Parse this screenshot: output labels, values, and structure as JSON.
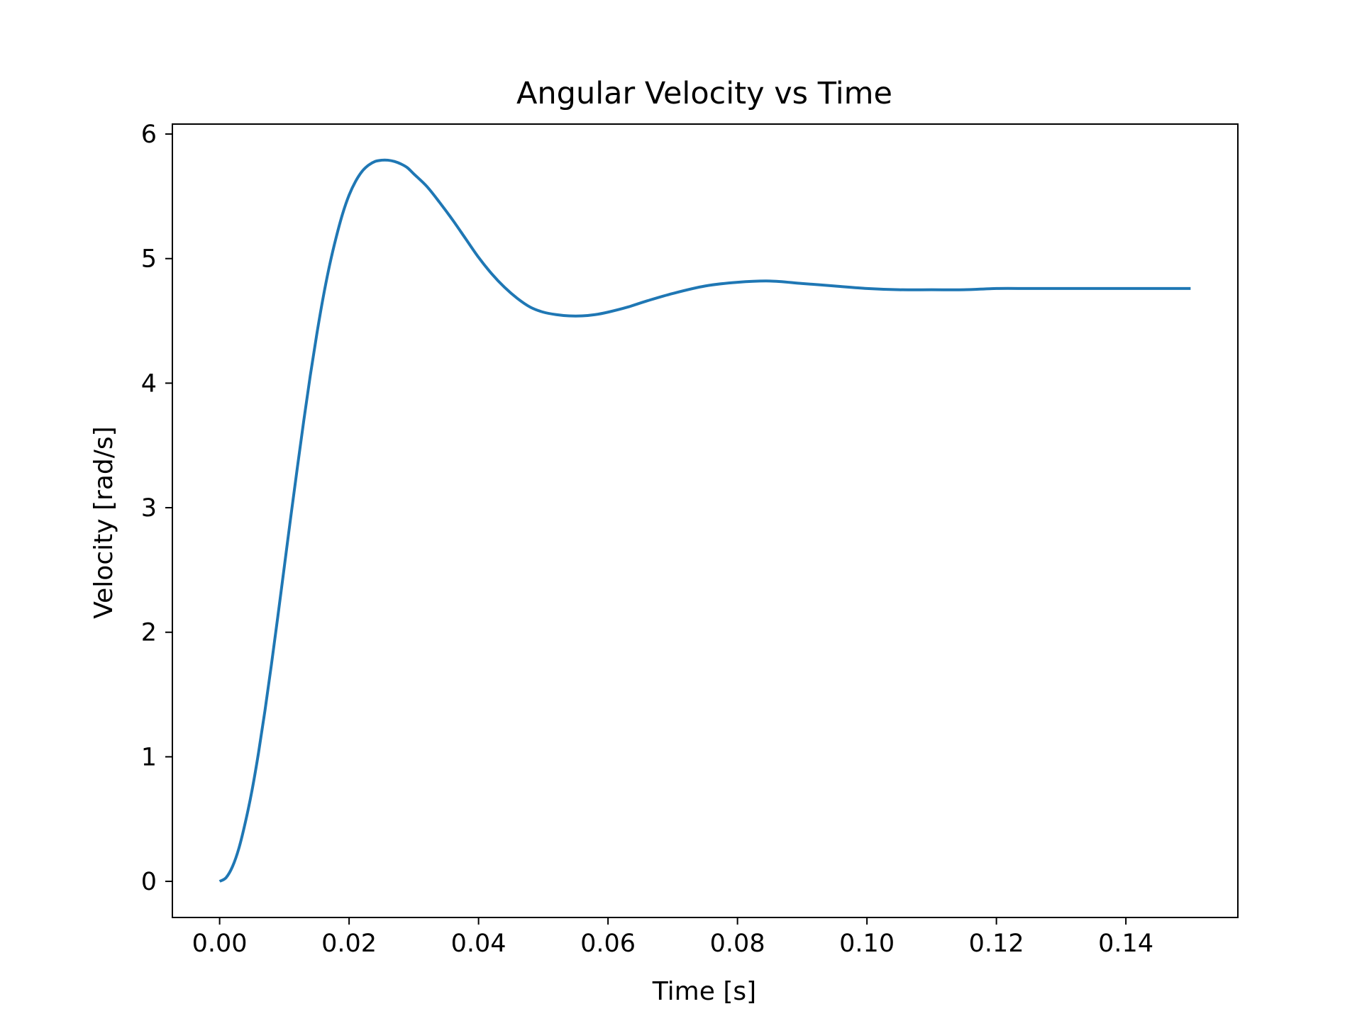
{
  "chart_data": {
    "type": "line",
    "title": "Angular Velocity vs Time",
    "xlabel": "Time [s]",
    "ylabel": "Velocity [rad/s]",
    "xlim": [
      -0.0073,
      0.1573
    ],
    "ylim": [
      -0.29,
      6.08
    ],
    "grid": false,
    "legend": "none",
    "x_ticks": [
      "0.00",
      "0.02",
      "0.04",
      "0.06",
      "0.08",
      "0.10",
      "0.12",
      "0.14"
    ],
    "x_tick_values": [
      0.0,
      0.02,
      0.04,
      0.06,
      0.08,
      0.1,
      0.12,
      0.14
    ],
    "y_ticks": [
      "0",
      "1",
      "2",
      "3",
      "4",
      "5",
      "6"
    ],
    "y_tick_values": [
      0,
      1,
      2,
      3,
      4,
      5,
      6
    ],
    "series": [
      {
        "color": "#1f77b4",
        "x": [
          0.0,
          0.001,
          0.002,
          0.003,
          0.004,
          0.005,
          0.006,
          0.007,
          0.008,
          0.009,
          0.01,
          0.011,
          0.012,
          0.013,
          0.014,
          0.015,
          0.016,
          0.017,
          0.018,
          0.019,
          0.02,
          0.021,
          0.022,
          0.023,
          0.024,
          0.025,
          0.026,
          0.027,
          0.028,
          0.029,
          0.03,
          0.032,
          0.034,
          0.036,
          0.038,
          0.04,
          0.042,
          0.044,
          0.046,
          0.048,
          0.05,
          0.052,
          0.054,
          0.056,
          0.058,
          0.06,
          0.063,
          0.066,
          0.07,
          0.075,
          0.08,
          0.085,
          0.09,
          0.095,
          0.1,
          0.105,
          0.11,
          0.115,
          0.12,
          0.125,
          0.13,
          0.135,
          0.14,
          0.145,
          0.15
        ],
        "y": [
          0.0,
          0.03,
          0.12,
          0.27,
          0.48,
          0.73,
          1.03,
          1.37,
          1.74,
          2.13,
          2.53,
          2.93,
          3.32,
          3.7,
          4.06,
          4.39,
          4.69,
          4.95,
          5.17,
          5.36,
          5.51,
          5.62,
          5.7,
          5.75,
          5.78,
          5.79,
          5.79,
          5.78,
          5.76,
          5.73,
          5.68,
          5.58,
          5.45,
          5.31,
          5.16,
          5.01,
          4.88,
          4.77,
          4.68,
          4.61,
          4.57,
          4.55,
          4.54,
          4.54,
          4.55,
          4.57,
          4.61,
          4.66,
          4.72,
          4.78,
          4.81,
          4.82,
          4.8,
          4.78,
          4.76,
          4.75,
          4.75,
          4.75,
          4.76,
          4.76,
          4.76,
          4.76,
          4.76,
          4.76,
          4.76
        ]
      }
    ]
  }
}
